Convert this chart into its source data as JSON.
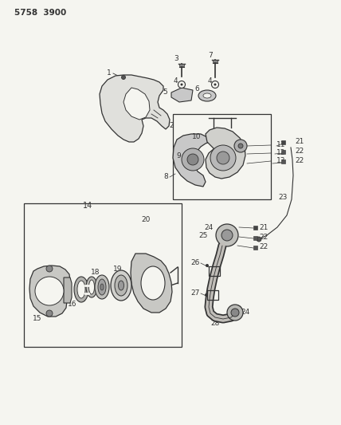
{
  "title": "5758  3900",
  "bg_color": "#f5f5f0",
  "line_color": "#333333",
  "fig_width": 4.28,
  "fig_height": 5.33,
  "dpi": 100
}
